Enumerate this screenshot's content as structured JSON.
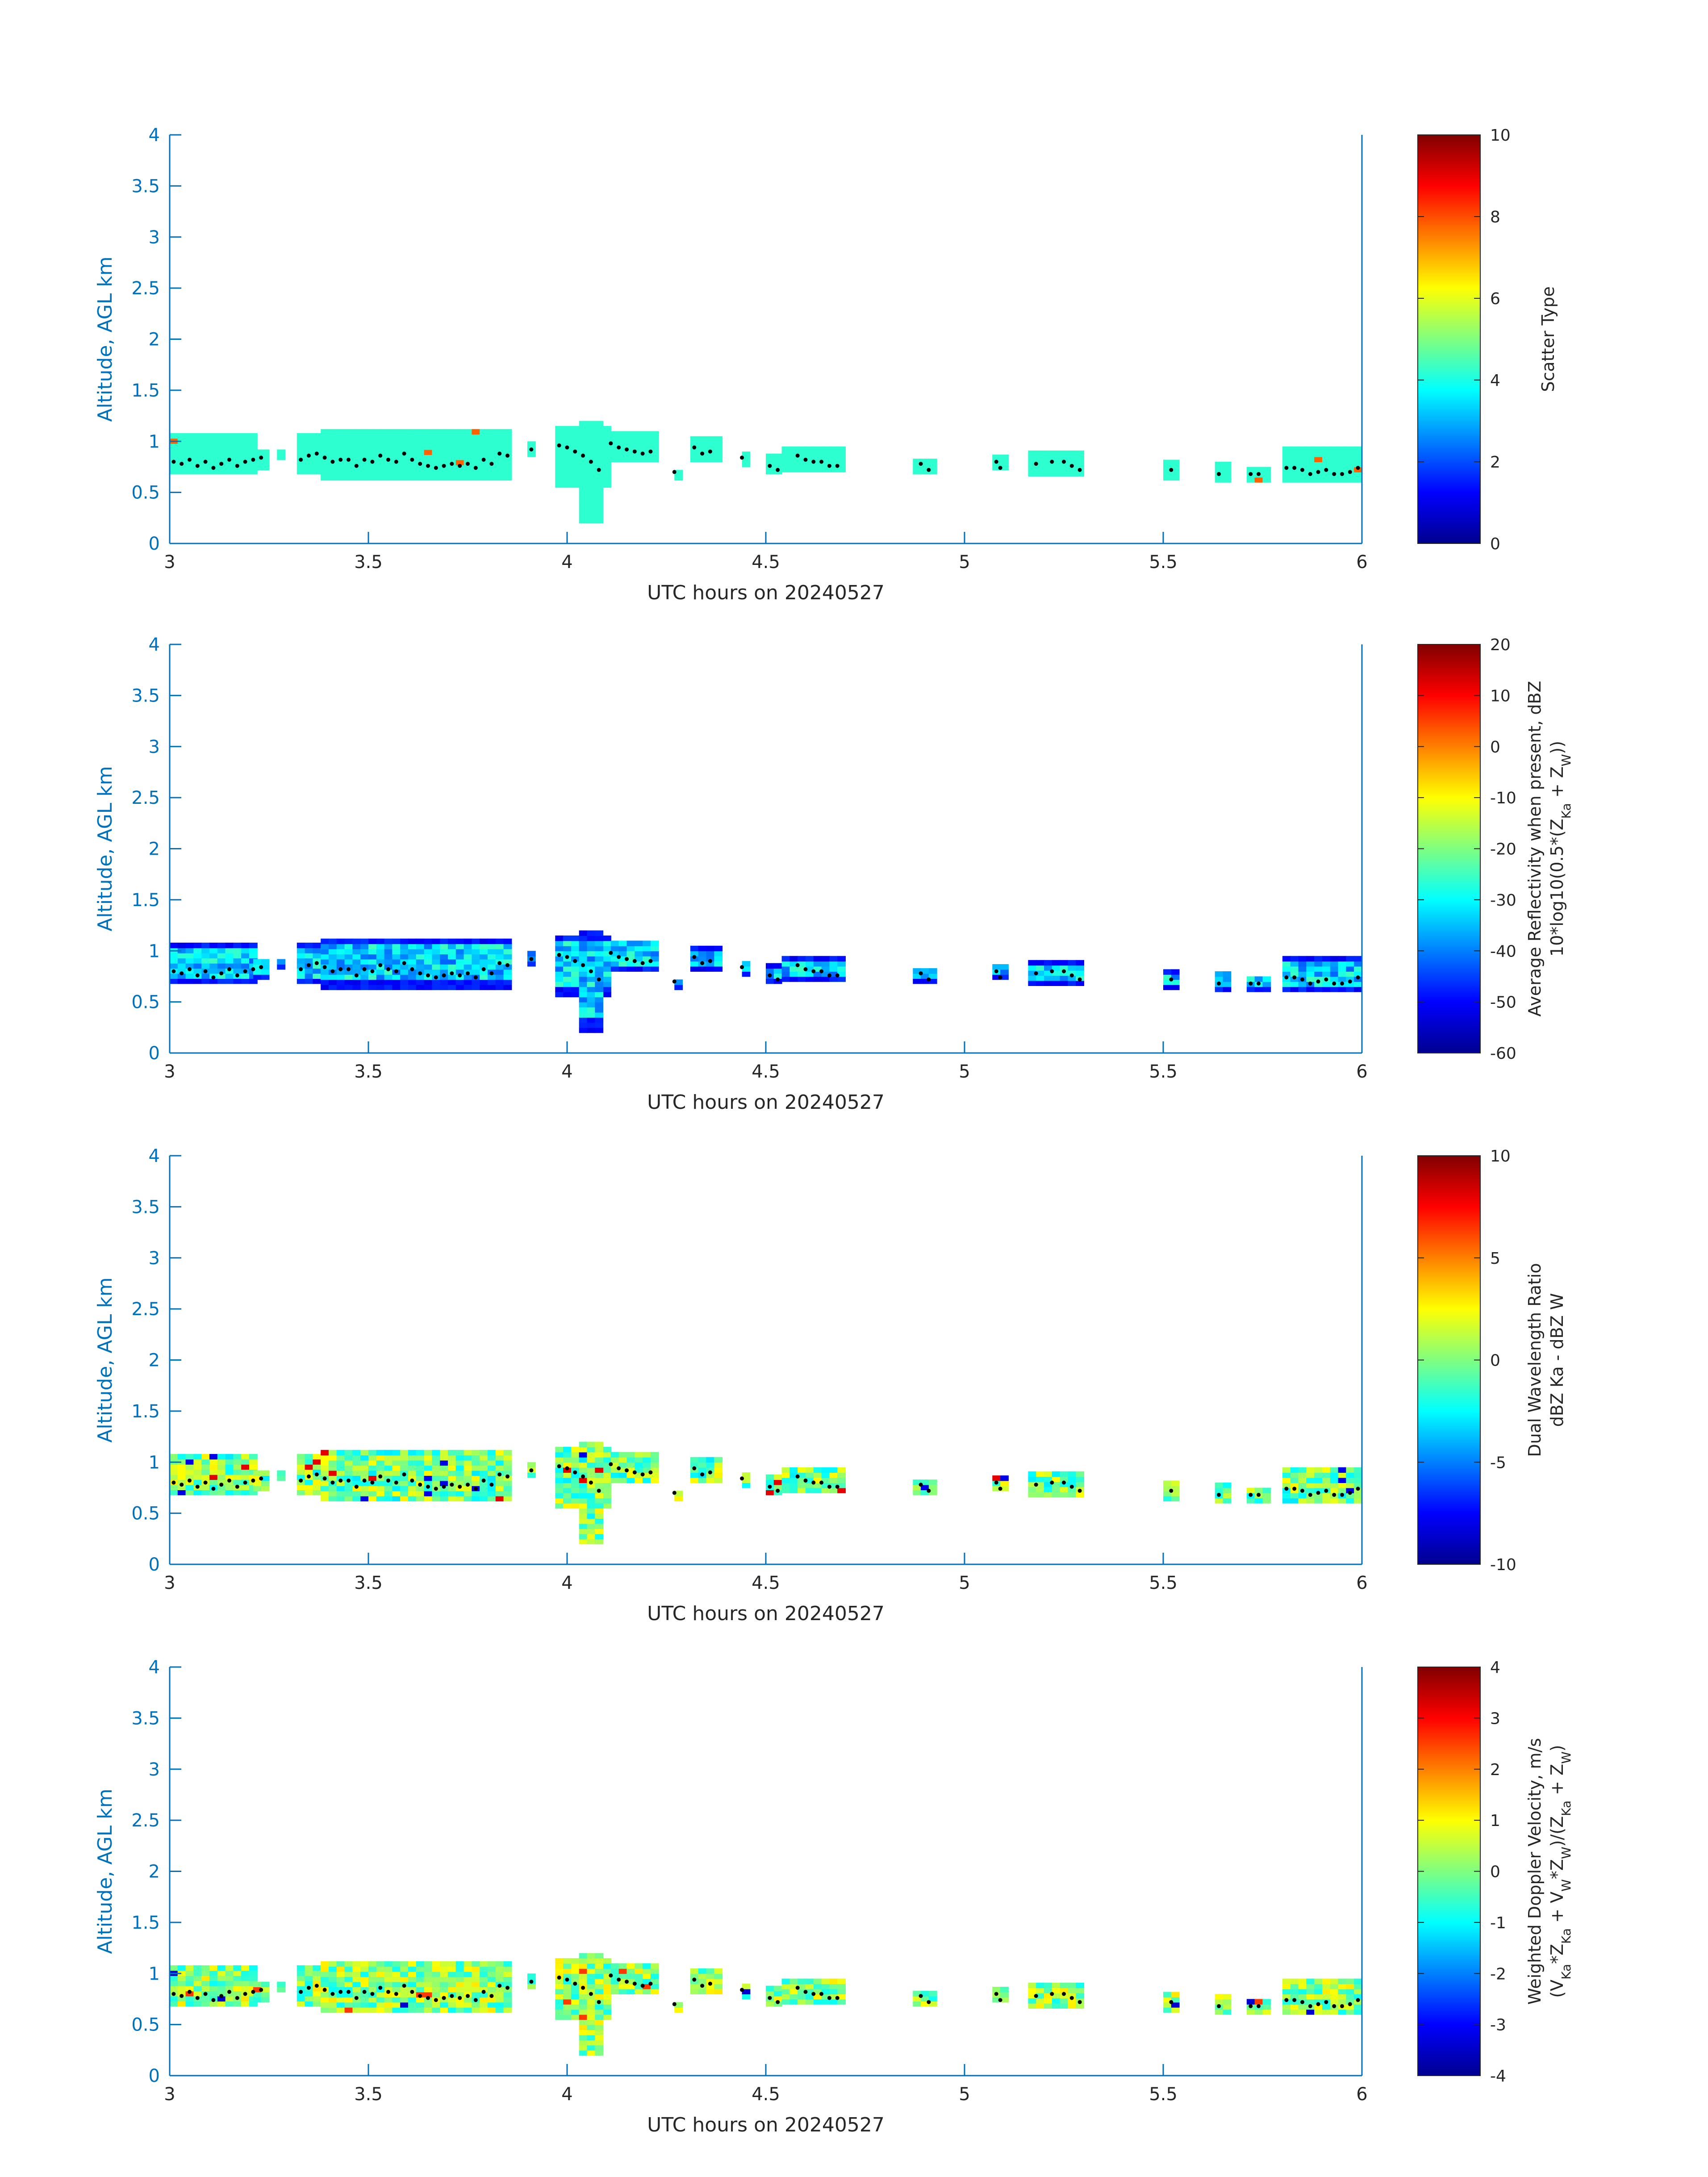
{
  "colors": {
    "axis": "#0072BD",
    "text": "#262626",
    "black": "#000000"
  },
  "chart_data": [
    {
      "type": "heatmap",
      "ylabel": "Altitude, AGL km",
      "xlabel": "UTC hours on 20240527",
      "xlim": [
        3,
        6
      ],
      "ylim": [
        0,
        4
      ],
      "xticks": [
        "3",
        "3.5",
        "4",
        "4.5",
        "5",
        "5.5",
        "6"
      ],
      "yticks": [
        "0",
        "0.5",
        "1",
        "1.5",
        "2",
        "2.5",
        "3",
        "3.5",
        "4"
      ],
      "colorbar": {
        "title1": "Scatter Type",
        "title2": "",
        "min": 0,
        "max": 10,
        "ticks": [
          "0",
          "2",
          "4",
          "6",
          "8",
          "10"
        ]
      }
    },
    {
      "type": "heatmap",
      "ylabel": "Altitude, AGL km",
      "xlabel": "UTC hours on 20240527",
      "xlim": [
        3,
        6
      ],
      "ylim": [
        0,
        4
      ],
      "xticks": [
        "3",
        "3.5",
        "4",
        "4.5",
        "5",
        "5.5",
        "6"
      ],
      "yticks": [
        "0",
        "0.5",
        "1",
        "1.5",
        "2",
        "2.5",
        "3",
        "3.5",
        "4"
      ],
      "colorbar": {
        "title1": "Average Reflectivity when present, dBZ",
        "title2": "10*log10(0.5*(Z_Ka + Z_W))",
        "min": -60,
        "max": 20,
        "ticks": [
          "-60",
          "-50",
          "-40",
          "-30",
          "-20",
          "-10",
          "0",
          "10",
          "20"
        ]
      }
    },
    {
      "type": "heatmap",
      "ylabel": "Altitude, AGL km",
      "xlabel": "UTC hours on 20240527",
      "xlim": [
        3,
        6
      ],
      "ylim": [
        0,
        4
      ],
      "xticks": [
        "3",
        "3.5",
        "4",
        "4.5",
        "5",
        "5.5",
        "6"
      ],
      "yticks": [
        "0",
        "0.5",
        "1",
        "1.5",
        "2",
        "2.5",
        "3",
        "3.5",
        "4"
      ],
      "colorbar": {
        "title1": "Dual Wavelength Ratio",
        "title2": "dBZ Ka - dBZ W",
        "min": -10,
        "max": 10,
        "ticks": [
          "-10",
          "-5",
          "0",
          "5",
          "10"
        ]
      }
    },
    {
      "type": "heatmap",
      "ylabel": "Altitude, AGL km",
      "xlabel": "UTC hours on 20240527",
      "xlim": [
        3,
        6
      ],
      "ylim": [
        0,
        4
      ],
      "xticks": [
        "3",
        "3.5",
        "4",
        "4.5",
        "5",
        "5.5",
        "6"
      ],
      "yticks": [
        "0",
        "0.5",
        "1",
        "1.5",
        "2",
        "2.5",
        "3",
        "3.5",
        "4"
      ],
      "colorbar": {
        "title1": "Weighted Doppler Velocity, m/s",
        "title2": "(V_Ka*Z_Ka + V_W*Z_W)/(Z_Ka + Z_W)",
        "min": -4,
        "max": 4,
        "ticks": [
          "-4",
          "-3",
          "-2",
          "-1",
          "0",
          "1",
          "2",
          "3",
          "4"
        ]
      }
    }
  ],
  "echo_segments": [
    {
      "t0": 3.0,
      "t1": 3.21,
      "bot": 0.68,
      "top": 1.05
    },
    {
      "t0": 3.21,
      "t1": 3.25,
      "bot": 0.72,
      "top": 0.9
    },
    {
      "t0": 3.27,
      "t1": 3.28,
      "bot": 0.82,
      "top": 0.88
    },
    {
      "t0": 3.32,
      "t1": 3.86,
      "bot": 0.68,
      "top": 1.05
    },
    {
      "t0": 3.38,
      "t1": 3.86,
      "bot": 0.62,
      "top": 1.1
    },
    {
      "t0": 3.9,
      "t1": 3.92,
      "bot": 0.85,
      "top": 1.0
    },
    {
      "t0": 3.97,
      "t1": 4.11,
      "bot": 0.55,
      "top": 1.15
    },
    {
      "t0": 4.03,
      "t1": 4.08,
      "bot": 0.2,
      "top": 1.2
    },
    {
      "t0": 4.11,
      "t1": 4.23,
      "bot": 0.8,
      "top": 1.1
    },
    {
      "t0": 4.27,
      "t1": 4.28,
      "bot": 0.62,
      "top": 0.72
    },
    {
      "t0": 4.31,
      "t1": 4.38,
      "bot": 0.8,
      "top": 1.02
    },
    {
      "t0": 4.44,
      "t1": 4.45,
      "bot": 0.75,
      "top": 0.9
    },
    {
      "t0": 4.5,
      "t1": 4.53,
      "bot": 0.68,
      "top": 0.85
    },
    {
      "t0": 4.54,
      "t1": 4.69,
      "bot": 0.7,
      "top": 0.92
    },
    {
      "t0": 4.87,
      "t1": 4.92,
      "bot": 0.68,
      "top": 0.82
    },
    {
      "t0": 5.07,
      "t1": 5.1,
      "bot": 0.72,
      "top": 0.85
    },
    {
      "t0": 5.16,
      "t1": 5.3,
      "bot": 0.66,
      "top": 0.87
    },
    {
      "t0": 5.5,
      "t1": 5.53,
      "bot": 0.62,
      "top": 0.78
    },
    {
      "t0": 5.63,
      "t1": 5.66,
      "bot": 0.6,
      "top": 0.8
    },
    {
      "t0": 5.71,
      "t1": 5.76,
      "bot": 0.6,
      "top": 0.74
    },
    {
      "t0": 5.8,
      "t1": 6.0,
      "bot": 0.6,
      "top": 0.92
    }
  ],
  "cloud_base_dots": [
    [
      3.01,
      0.8
    ],
    [
      3.03,
      0.78
    ],
    [
      3.05,
      0.82
    ],
    [
      3.07,
      0.76
    ],
    [
      3.09,
      0.8
    ],
    [
      3.11,
      0.74
    ],
    [
      3.13,
      0.78
    ],
    [
      3.15,
      0.82
    ],
    [
      3.17,
      0.76
    ],
    [
      3.19,
      0.8
    ],
    [
      3.21,
      0.82
    ],
    [
      3.23,
      0.84
    ],
    [
      3.33,
      0.82
    ],
    [
      3.35,
      0.86
    ],
    [
      3.37,
      0.88
    ],
    [
      3.39,
      0.84
    ],
    [
      3.41,
      0.8
    ],
    [
      3.43,
      0.82
    ],
    [
      3.45,
      0.82
    ],
    [
      3.47,
      0.76
    ],
    [
      3.49,
      0.82
    ],
    [
      3.51,
      0.8
    ],
    [
      3.53,
      0.86
    ],
    [
      3.55,
      0.82
    ],
    [
      3.57,
      0.8
    ],
    [
      3.59,
      0.88
    ],
    [
      3.61,
      0.82
    ],
    [
      3.63,
      0.78
    ],
    [
      3.65,
      0.76
    ],
    [
      3.67,
      0.74
    ],
    [
      3.69,
      0.76
    ],
    [
      3.71,
      0.78
    ],
    [
      3.73,
      0.76
    ],
    [
      3.75,
      0.78
    ],
    [
      3.77,
      0.74
    ],
    [
      3.79,
      0.82
    ],
    [
      3.81,
      0.78
    ],
    [
      3.83,
      0.88
    ],
    [
      3.85,
      0.86
    ],
    [
      3.91,
      0.92
    ],
    [
      3.98,
      0.96
    ],
    [
      4.0,
      0.94
    ],
    [
      4.02,
      0.9
    ],
    [
      4.04,
      0.86
    ],
    [
      4.06,
      0.8
    ],
    [
      4.08,
      0.72
    ],
    [
      4.11,
      0.98
    ],
    [
      4.13,
      0.94
    ],
    [
      4.15,
      0.92
    ],
    [
      4.17,
      0.9
    ],
    [
      4.19,
      0.88
    ],
    [
      4.21,
      0.9
    ],
    [
      4.27,
      0.7
    ],
    [
      4.32,
      0.94
    ],
    [
      4.34,
      0.88
    ],
    [
      4.36,
      0.9
    ],
    [
      4.44,
      0.84
    ],
    [
      4.51,
      0.76
    ],
    [
      4.53,
      0.72
    ],
    [
      4.58,
      0.86
    ],
    [
      4.6,
      0.82
    ],
    [
      4.62,
      0.8
    ],
    [
      4.64,
      0.8
    ],
    [
      4.66,
      0.76
    ],
    [
      4.68,
      0.76
    ],
    [
      4.89,
      0.78
    ],
    [
      4.91,
      0.72
    ],
    [
      5.08,
      0.8
    ],
    [
      5.09,
      0.74
    ],
    [
      5.18,
      0.78
    ],
    [
      5.22,
      0.8
    ],
    [
      5.25,
      0.8
    ],
    [
      5.27,
      0.76
    ],
    [
      5.29,
      0.72
    ],
    [
      5.52,
      0.72
    ],
    [
      5.64,
      0.68
    ],
    [
      5.72,
      0.68
    ],
    [
      5.74,
      0.68
    ],
    [
      5.81,
      0.74
    ],
    [
      5.83,
      0.74
    ],
    [
      5.85,
      0.72
    ],
    [
      5.87,
      0.68
    ],
    [
      5.89,
      0.7
    ],
    [
      5.91,
      0.72
    ],
    [
      5.93,
      0.68
    ],
    [
      5.95,
      0.68
    ],
    [
      5.97,
      0.7
    ],
    [
      5.99,
      0.74
    ]
  ]
}
